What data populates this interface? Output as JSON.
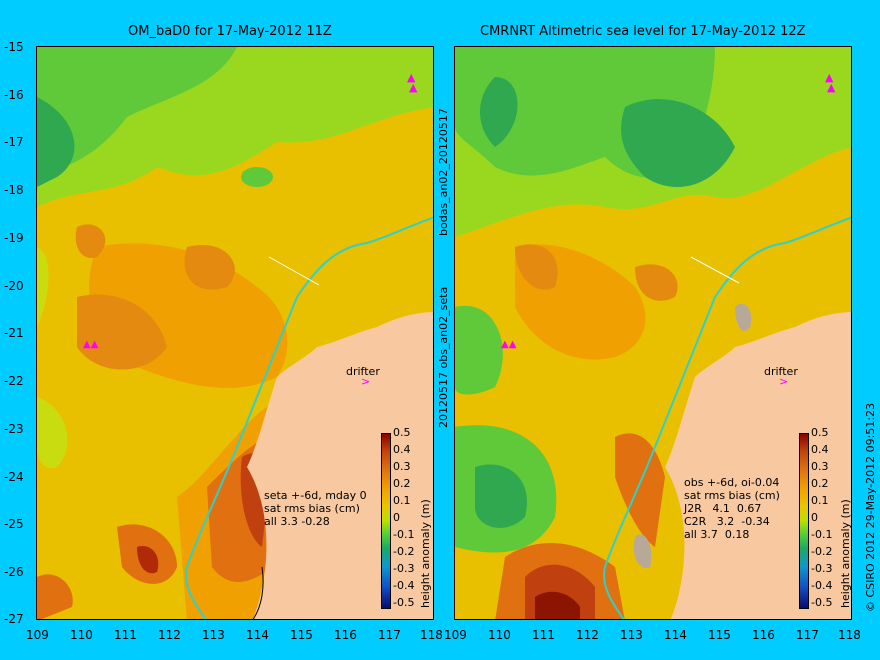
{
  "left_title": "OM_baD0 for 17-May-2012 11Z",
  "right_title": "CMRNRT Altimetric sea level  for 17-May-2012 12Z",
  "y_ticks": [
    "-15",
    "-16",
    "-17",
    "-18",
    "-19",
    "-20",
    "-21",
    "-22",
    "-23",
    "-24",
    "-25",
    "-26",
    "-27"
  ],
  "x_ticks": [
    "109",
    "110",
    "111",
    "112",
    "113",
    "114",
    "115",
    "116",
    "117",
    "118"
  ],
  "vertical_label_top": "bodas_an02_20120517",
  "vertical_label_bottom": "20120517 obs_an02_seta",
  "copyright": "© CSIRO 2012  29-May-2012 09:51:23",
  "drifter_label": "drifter",
  "colorbar_label": "height anomaly (m)",
  "colorbar_ticks": [
    "0.5",
    "0.4",
    "0.3",
    "0.2",
    "0.1",
    "0",
    "-0.1",
    "-0.2",
    "-0.3",
    "-0.4",
    "-0.5"
  ],
  "left_info": "seta +-6d, mday 0\nsat rms bias (cm)\nall 3.3 -0.28",
  "right_info": "obs +-6d, oi-0.04\nsat rms bias (cm)\nJ2R   4.1  0.67\nC2R   3.2  -0.34\nall 3.7  0.18",
  "colors": {
    "background": "#00ccff",
    "land": "#f8c8a0",
    "anomaly_high": "#8b0000",
    "anomaly_zero": "#b8e000",
    "anomaly_low": "#0a0a6e"
  }
}
